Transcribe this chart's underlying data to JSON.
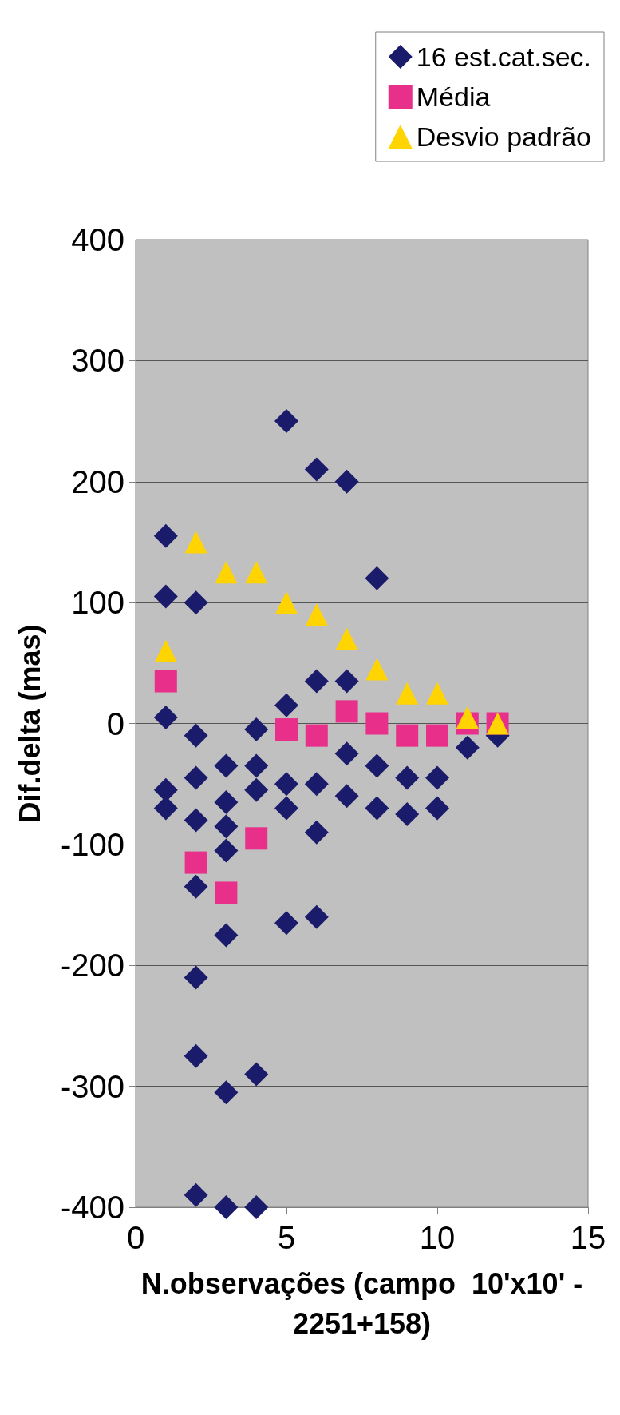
{
  "chart_data": {
    "type": "scatter",
    "xlabel": "N.observações (campo  10'x10' -\n2251+158)",
    "ylabel": "Dif.delta (mas)",
    "xlim": [
      0,
      15
    ],
    "xticks": [
      0,
      5,
      10,
      15
    ],
    "ylim": [
      -400,
      400
    ],
    "yticks": [
      -400,
      -300,
      -200,
      -100,
      0,
      100,
      200,
      300,
      400
    ],
    "grid": "y",
    "legend": "right",
    "series": [
      {
        "name": "16 est.cat.sec.",
        "color": "#1b1b6b",
        "marker": "diamond",
        "x": [
          1,
          1,
          1,
          1,
          1,
          2,
          2,
          2,
          2,
          2,
          2,
          2,
          2,
          3,
          3,
          3,
          3,
          3,
          3,
          3,
          4,
          4,
          4,
          4,
          4,
          5,
          5,
          5,
          5,
          5,
          6,
          6,
          6,
          6,
          6,
          7,
          7,
          7,
          7,
          8,
          8,
          8,
          9,
          9,
          10,
          10,
          11,
          12
        ],
        "values": [
          155,
          105,
          5,
          -55,
          -70,
          100,
          -10,
          -45,
          -80,
          -135,
          -210,
          -275,
          -390,
          -35,
          -65,
          -85,
          -105,
          -175,
          -305,
          -400,
          -5,
          -35,
          -55,
          -290,
          -400,
          250,
          15,
          -50,
          -70,
          -165,
          210,
          35,
          -50,
          -90,
          -160,
          200,
          35,
          -25,
          -60,
          120,
          -35,
          -70,
          -45,
          -75,
          -45,
          -70,
          -20,
          -10
        ]
      },
      {
        "name": "Média",
        "color": "#e8308a",
        "marker": "square",
        "x": [
          1,
          2,
          3,
          4,
          5,
          6,
          7,
          8,
          9,
          10,
          11,
          12
        ],
        "values": [
          35,
          -115,
          -140,
          -95,
          -5,
          -10,
          10,
          0,
          -10,
          -10,
          0,
          0
        ]
      },
      {
        "name": "Desvio padrão",
        "color": "#ffd400",
        "marker": "triangle",
        "x": [
          1,
          2,
          3,
          4,
          5,
          6,
          7,
          8,
          9,
          10,
          11,
          12
        ],
        "values": [
          60,
          150,
          125,
          125,
          100,
          90,
          70,
          45,
          25,
          25,
          5,
          0
        ]
      }
    ]
  }
}
